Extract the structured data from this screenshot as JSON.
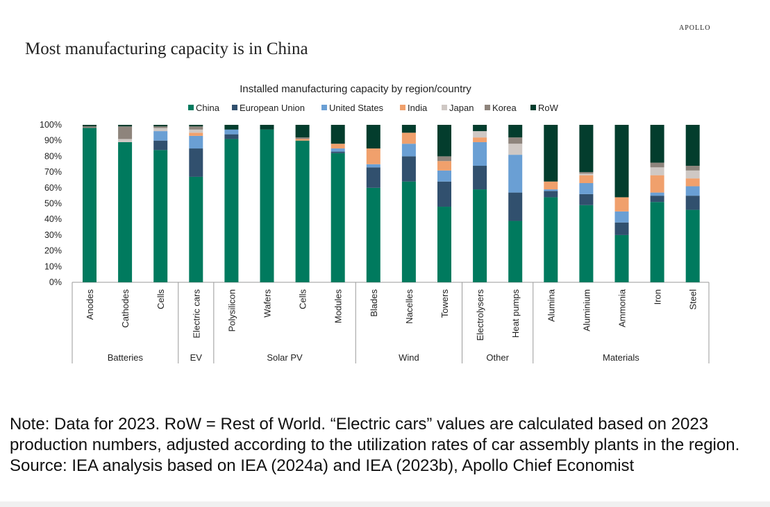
{
  "brand": "APOLLO",
  "headline": "Most manufacturing capacity is in China",
  "note": "Note: Data for 2023. RoW = Rest of World. “Electric cars” values are calculated based on 2023 production numbers, adjusted according to the utilization rates of car assembly plants in the region. Source: IEA analysis based on IEA (2024a) and IEA (2023b), Apollo Chief Economist",
  "colors": {
    "China": "#007a5e",
    "European Union": "#31506e",
    "United States": "#6a9fd4",
    "India": "#f0a06c",
    "Japan": "#cfc8c4",
    "Korea": "#8e847c",
    "RoW": "#033d2d"
  },
  "chart_data": {
    "type": "bar",
    "stacked": true,
    "title": "Installed manufacturing capacity by region/country",
    "xlabel": "",
    "ylabel": "",
    "ylim": [
      0,
      100
    ],
    "y_ticks": [
      "0%",
      "10%",
      "20%",
      "30%",
      "40%",
      "50%",
      "60%",
      "70%",
      "80%",
      "90%",
      "100%"
    ],
    "legend": [
      "China",
      "European Union",
      "United States",
      "India",
      "Japan",
      "Korea",
      "RoW"
    ],
    "legend_position": "top",
    "categories": [
      "Anodes",
      "Cathodes",
      "Cells",
      "Electric cars",
      "Polysilicon",
      "Wafers",
      "Cells",
      "Modules",
      "Blades",
      "Nacelles",
      "Towers",
      "Electrolysers",
      "Heat pumps",
      "Alumina",
      "Aluminium",
      "Ammonia",
      "Iron",
      "Steel"
    ],
    "groups": [
      {
        "name": "Batteries",
        "count": 3
      },
      {
        "name": "EV",
        "count": 1
      },
      {
        "name": "Solar PV",
        "count": 4
      },
      {
        "name": "Wind",
        "count": 3
      },
      {
        "name": "Other",
        "count": 2
      },
      {
        "name": "Materials",
        "count": 5
      }
    ],
    "series": [
      {
        "name": "China",
        "values": [
          98,
          89,
          84,
          67,
          91,
          97,
          90,
          82,
          60,
          64,
          48,
          59,
          39,
          54,
          49,
          30,
          51,
          46
        ]
      },
      {
        "name": "European Union",
        "values": [
          0,
          0,
          6,
          18,
          3,
          0,
          0,
          1,
          13,
          16,
          16,
          15,
          18,
          4,
          7,
          8,
          4,
          9
        ]
      },
      {
        "name": "United States",
        "values": [
          0,
          0,
          6,
          8,
          3,
          0,
          0,
          2,
          2,
          8,
          7,
          15,
          24,
          1,
          7,
          7,
          2,
          6
        ]
      },
      {
        "name": "India",
        "values": [
          0,
          0,
          0,
          2,
          0,
          0,
          1,
          3,
          10,
          7,
          6,
          3,
          0,
          5,
          5,
          9,
          11,
          5
        ]
      },
      {
        "name": "Japan",
        "values": [
          0,
          2,
          2,
          2,
          0,
          0,
          0,
          0,
          0,
          0,
          0,
          4,
          7,
          0,
          1,
          0,
          5,
          5
        ]
      },
      {
        "name": "Korea",
        "values": [
          1,
          8,
          1,
          2,
          0,
          0,
          1,
          0,
          0,
          0,
          3,
          0,
          4,
          0,
          1,
          0,
          3,
          3
        ]
      },
      {
        "name": "RoW",
        "values": [
          1,
          1,
          1,
          1,
          3,
          3,
          8,
          12,
          15,
          5,
          20,
          4,
          8,
          36,
          30,
          46,
          24,
          26
        ]
      }
    ]
  }
}
